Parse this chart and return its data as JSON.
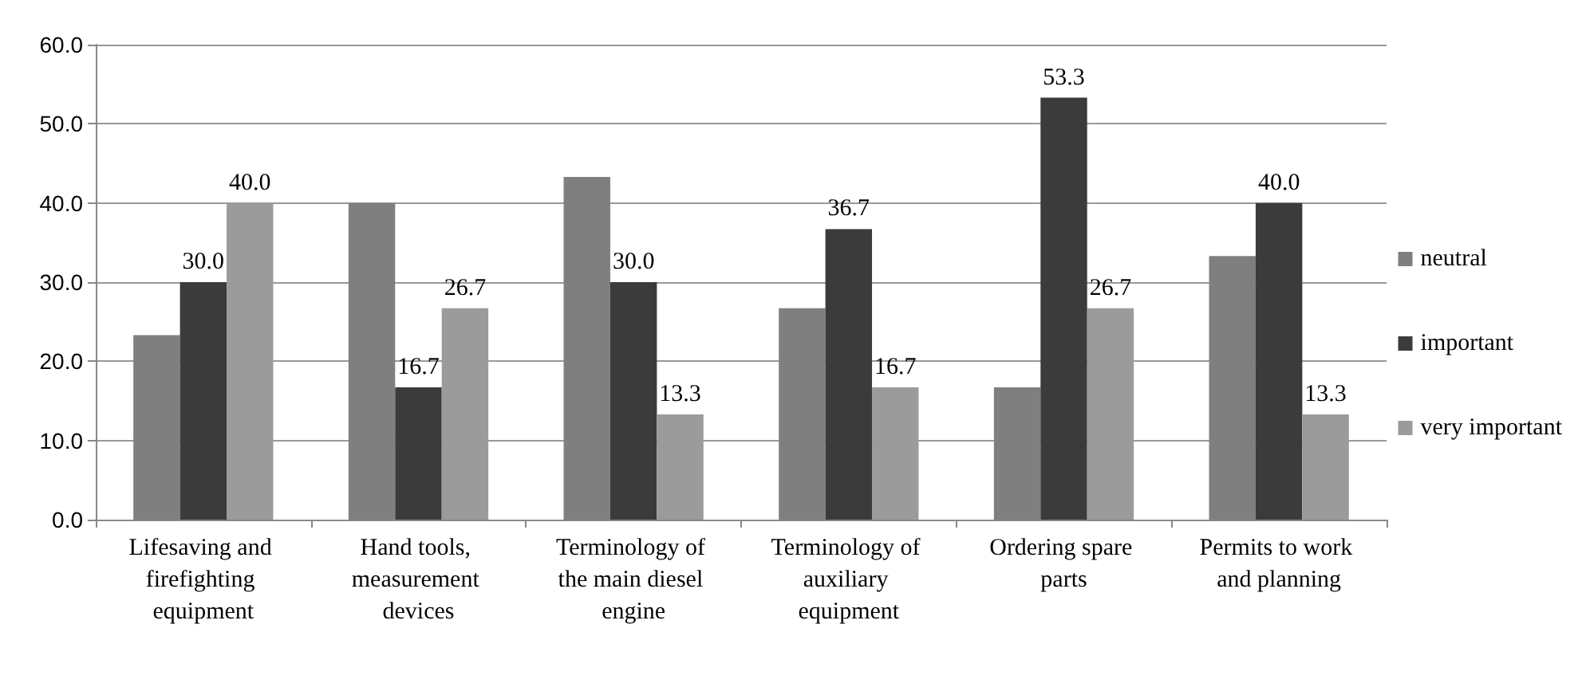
{
  "chart_data": {
    "type": "bar",
    "categories": [
      "Lifesaving and firefighting equipment",
      "Hand tools, measurement devices",
      "Terminology of the main diesel engine",
      "Terminology of auxiliary equipment",
      "Ordering spare parts",
      "Permits to work and planning"
    ],
    "series": [
      {
        "name": "neutral",
        "color": "#7f7f7f",
        "values": [
          23.3,
          40.0,
          43.3,
          26.7,
          16.7,
          33.3
        ]
      },
      {
        "name": "important",
        "color": "#3b3b3b",
        "values": [
          30.0,
          16.7,
          30.0,
          36.7,
          53.3,
          40.0
        ],
        "value_labels": [
          "30.0",
          "16.7",
          "30.0",
          "36.7",
          "53.3",
          "40.0"
        ]
      },
      {
        "name": "very important",
        "color": "#9b9b9b",
        "values": [
          40.0,
          26.7,
          13.3,
          16.7,
          26.7,
          13.3
        ],
        "value_labels": [
          "40.0",
          "26.7",
          "13.3",
          "16.7",
          "26.7",
          "13.3"
        ]
      }
    ],
    "ylim": [
      0,
      60
    ],
    "yticks": [
      {
        "value": 0,
        "label": "0.0"
      },
      {
        "value": 10,
        "label": "10.0"
      },
      {
        "value": 20,
        "label": "20.0"
      },
      {
        "value": 30,
        "label": "30.0"
      },
      {
        "value": 40,
        "label": "40.0"
      },
      {
        "value": 50,
        "label": "50.0"
      },
      {
        "value": 60,
        "label": "60.0"
      }
    ],
    "grid": "y",
    "legend": "right"
  }
}
